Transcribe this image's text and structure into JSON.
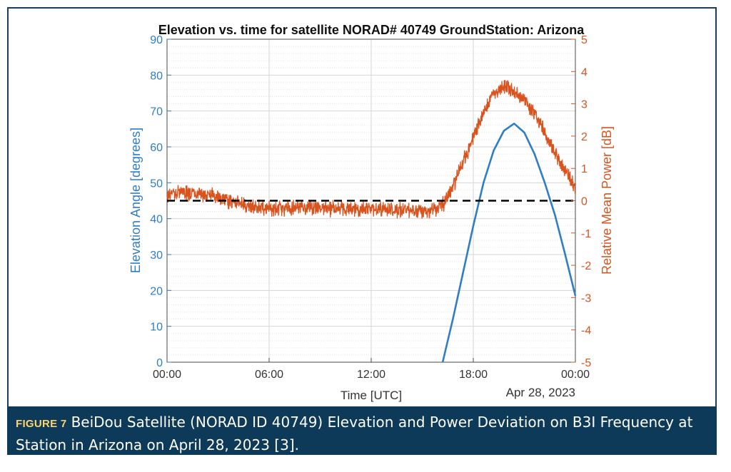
{
  "chart_data": {
    "type": "line",
    "title": "Elevation vs. time for satellite NORAD# 40749 GroundStation: Arizona",
    "xlabel": "Time [UTC]",
    "x_date_label": "Apr 28, 2023",
    "x_ticks": [
      "00:00",
      "06:00",
      "12:00",
      "18:00",
      "00:00"
    ],
    "x_tick_hours": [
      0,
      6,
      12,
      18,
      24
    ],
    "xlim_hours": [
      0,
      24
    ],
    "y_left": {
      "label": "Elevation Angle [degrees]",
      "lim": [
        0,
        90
      ],
      "ticks": [
        0,
        10,
        20,
        30,
        40,
        50,
        60,
        70,
        80,
        90
      ],
      "color": "#2f7ec4"
    },
    "y_right": {
      "label": "Relative Mean Power [dB]",
      "lim": [
        -5,
        5
      ],
      "ticks": [
        -5,
        -4,
        -3,
        -2,
        -1,
        0,
        1,
        2,
        3,
        4,
        5
      ],
      "color": "#d9531e"
    },
    "grid": true,
    "series": [
      {
        "axis": "left",
        "color": "#2f7ec4",
        "style": "solid",
        "points": [
          [
            16.2,
            0
          ],
          [
            16.8,
            12
          ],
          [
            17.4,
            25
          ],
          [
            18.0,
            38
          ],
          [
            18.6,
            50
          ],
          [
            19.2,
            59
          ],
          [
            19.8,
            64.5
          ],
          [
            20.4,
            66.5
          ],
          [
            21.0,
            64
          ],
          [
            21.6,
            58
          ],
          [
            22.2,
            50
          ],
          [
            22.8,
            41
          ],
          [
            23.4,
            30
          ],
          [
            24.0,
            18.5
          ]
        ]
      },
      {
        "axis": "right",
        "color": "#d9531e",
        "style": "noisy",
        "points": [
          [
            0.0,
            0.2
          ],
          [
            1.0,
            0.25
          ],
          [
            2.0,
            0.2
          ],
          [
            3.0,
            0.1
          ],
          [
            4.0,
            -0.05
          ],
          [
            5.0,
            -0.2
          ],
          [
            6.0,
            -0.25
          ],
          [
            8.0,
            -0.2
          ],
          [
            10.0,
            -0.25
          ],
          [
            12.0,
            -0.25
          ],
          [
            14.0,
            -0.3
          ],
          [
            15.5,
            -0.3
          ],
          [
            16.2,
            -0.15
          ],
          [
            16.8,
            0.4
          ],
          [
            17.4,
            1.2
          ],
          [
            18.0,
            1.9
          ],
          [
            18.6,
            2.8
          ],
          [
            19.2,
            3.3
          ],
          [
            19.8,
            3.55
          ],
          [
            20.4,
            3.35
          ],
          [
            21.0,
            3.1
          ],
          [
            21.6,
            2.7
          ],
          [
            22.2,
            2.1
          ],
          [
            22.8,
            1.5
          ],
          [
            23.4,
            0.9
          ],
          [
            24.0,
            0.4
          ]
        ]
      },
      {
        "axis": "right",
        "color": "#000000",
        "style": "dashed",
        "points": [
          [
            0,
            0
          ],
          [
            24,
            0
          ]
        ]
      }
    ]
  },
  "caption": {
    "figure_label": "FIGURE 7",
    "text": "BeiDou Satellite (NORAD ID 40749) Elevation and Power Deviation on B3I Frequency at Station in Arizona on April 28, 2023 [3]."
  }
}
